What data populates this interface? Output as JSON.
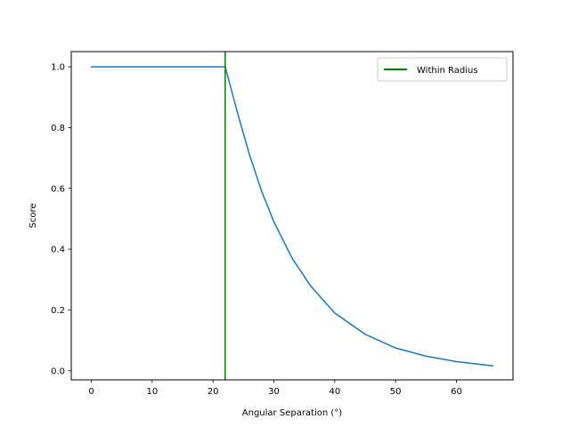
{
  "chart_data": {
    "type": "line",
    "xlabel": "Angular Separation (°)",
    "ylabel": "Score",
    "xlim": [
      -3.3,
      69.3
    ],
    "ylim": [
      -0.03,
      1.05
    ],
    "x_ticks": [
      0,
      10,
      20,
      30,
      40,
      50,
      60
    ],
    "y_ticks": [
      0.0,
      0.2,
      0.4,
      0.6,
      0.8,
      1.0
    ],
    "x_tick_labels": [
      "0",
      "10",
      "20",
      "30",
      "40",
      "50",
      "60"
    ],
    "y_tick_labels": [
      "0.0",
      "0.2",
      "0.4",
      "0.6",
      "0.8",
      "1.0"
    ],
    "grid": false,
    "legend": {
      "placement": "top-right"
    },
    "series": [
      {
        "kind": "line",
        "color": "#1f77b4",
        "x": [
          0,
          22,
          24,
          26,
          28,
          30,
          33,
          36,
          40,
          45,
          50,
          55,
          60,
          66
        ],
        "y": [
          1.0,
          1.0,
          0.85,
          0.71,
          0.59,
          0.49,
          0.37,
          0.28,
          0.19,
          0.12,
          0.075,
          0.048,
          0.03,
          0.016
        ]
      },
      {
        "kind": "vline",
        "name": "Within Radius",
        "color": "#008000",
        "x": 22
      }
    ]
  }
}
